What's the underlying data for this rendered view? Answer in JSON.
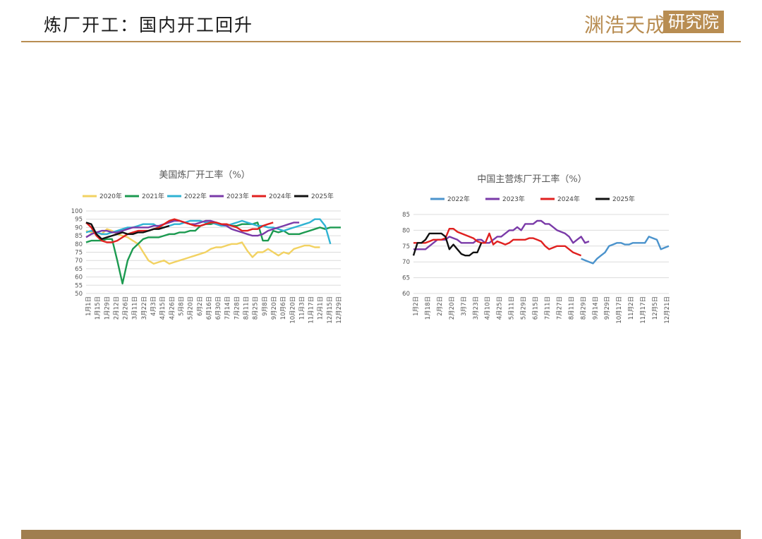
{
  "slide": {
    "title": "炼厂开工：国内开工回升",
    "logo_left": "渊浩天成",
    "logo_right": "研究院"
  },
  "chart_data": [
    {
      "type": "line",
      "title": "美国炼厂开工率（%）",
      "ylim": [
        50,
        100
      ],
      "yticks": [
        50,
        55,
        60,
        65,
        70,
        75,
        80,
        85,
        90,
        95,
        100
      ],
      "grid": true,
      "legend_position": "top",
      "x_tick_labels": [
        "1月1日",
        "1月15日",
        "1月29日",
        "2月12日",
        "2月26日",
        "3月11日",
        "3月22日",
        "4月3日",
        "4月15日",
        "4月26日",
        "5月8日",
        "5月20日",
        "6月2日",
        "6月16日",
        "6月30日",
        "7月14日",
        "7月28日",
        "8月11日",
        "8月25日",
        "9月8日",
        "9月20日",
        "10月6日",
        "10月20日",
        "11月3日",
        "11月17日",
        "12月1日",
        "12月15日",
        "12月29日"
      ],
      "series": [
        {
          "name": "2020年",
          "color": "#f2d262",
          "values": [
            88,
            87,
            87,
            86,
            89,
            88,
            86,
            85,
            84,
            82,
            80,
            75,
            70,
            68,
            69,
            70,
            68,
            69,
            70,
            71,
            72,
            73,
            74,
            75,
            77,
            78,
            78,
            79,
            80,
            80,
            81,
            76,
            72,
            75,
            75,
            77,
            75,
            73,
            75,
            74,
            77,
            78,
            79,
            79,
            78,
            78
          ]
        },
        {
          "name": "2021年",
          "color": "#1c9a50",
          "values": [
            81,
            82,
            82,
            82,
            83,
            83,
            70,
            56,
            70,
            77,
            80,
            83,
            84,
            84,
            84,
            85,
            86,
            86,
            87,
            87,
            88,
            88,
            91,
            92,
            92,
            93,
            92,
            92,
            91,
            91,
            92,
            92,
            92,
            93,
            82,
            82,
            88,
            87,
            88,
            86,
            86,
            86,
            87,
            88,
            89,
            90,
            89,
            90,
            90,
            90
          ]
        },
        {
          "name": "2022年",
          "color": "#2fb3d3",
          "values": [
            87,
            88,
            87,
            86,
            86,
            87,
            88,
            89,
            90,
            90,
            91,
            92,
            92,
            92,
            90,
            90,
            91,
            92,
            92,
            93,
            94,
            94,
            94,
            93,
            93,
            92,
            91,
            91,
            92,
            93,
            94,
            93,
            92,
            91,
            91,
            90,
            90,
            89,
            88,
            89,
            90,
            91,
            92,
            93,
            95,
            95,
            91,
            80
          ]
        },
        {
          "name": "2023年",
          "color": "#7a3aa8",
          "values": [
            84,
            86,
            87,
            88,
            88,
            87,
            87,
            88,
            89,
            90,
            90,
            90,
            90,
            91,
            91,
            92,
            93,
            94,
            94,
            93,
            92,
            92,
            93,
            94,
            94,
            93,
            92,
            91,
            89,
            88,
            87,
            86,
            85,
            85,
            86,
            88,
            89,
            90,
            91,
            92,
            93,
            93
          ]
        },
        {
          "name": "2024年",
          "color": "#e0201f",
          "values": [
            93,
            90,
            85,
            82,
            81,
            81,
            82,
            84,
            86,
            87,
            88,
            88,
            88,
            89,
            90,
            92,
            94,
            95,
            94,
            93,
            92,
            91,
            91,
            92,
            93,
            93,
            92,
            92,
            91,
            90,
            88,
            88,
            89,
            89,
            91,
            92,
            93
          ]
        },
        {
          "name": "2025年",
          "color": "#111111",
          "values": [
            93,
            92,
            86,
            83,
            84,
            85,
            86,
            87,
            86,
            86,
            87,
            87,
            88,
            89,
            89,
            90,
            91
          ]
        }
      ]
    },
    {
      "type": "line",
      "title": "中国主营炼厂开工率（%）",
      "ylim": [
        60,
        85
      ],
      "yticks": [
        60,
        65,
        70,
        75,
        80,
        85
      ],
      "grid": true,
      "legend_position": "top",
      "x_tick_labels": [
        "1月2日",
        "1月18日",
        "2月2日",
        "2月20日",
        "3月7日",
        "3月23日",
        "4月10日",
        "4月25日",
        "5月11日",
        "5月29日",
        "6月15日",
        "7月11日",
        "7月27日",
        "8月11日",
        "8月29日",
        "9月14日",
        "9月29日",
        "10月17日",
        "11月2日",
        "11月17日",
        "12月5日",
        "12月21日"
      ],
      "series": [
        {
          "name": "2022年",
          "color": "#4b93cc",
          "values": [
            null,
            null,
            null,
            null,
            null,
            null,
            null,
            null,
            null,
            null,
            null,
            null,
            null,
            null,
            null,
            null,
            null,
            null,
            null,
            null,
            null,
            null,
            null,
            null,
            null,
            null,
            null,
            null,
            null,
            null,
            null,
            null,
            null,
            null,
            null,
            null,
            null,
            null,
            null,
            null,
            null,
            null,
            71,
            70.5,
            70,
            69.5,
            71,
            72,
            73,
            75,
            75.5,
            76,
            76,
            75.5,
            75.5,
            76,
            76,
            76,
            76,
            78,
            77.5,
            77,
            74,
            74.5,
            75
          ]
        },
        {
          "name": "2023年",
          "color": "#7a3aa8",
          "values": [
            74,
            74,
            74,
            74,
            75,
            76,
            77,
            77,
            77,
            78,
            77.5,
            77,
            76,
            76,
            76,
            76,
            77,
            77,
            76,
            76,
            77,
            78,
            78,
            79,
            80,
            80,
            81,
            80,
            82,
            82,
            82,
            83,
            83,
            82,
            82,
            81,
            80,
            79.5,
            79,
            78,
            76,
            77,
            78,
            76,
            76.5
          ]
        },
        {
          "name": "2024年",
          "color": "#e0201f",
          "values": [
            76,
            76,
            76,
            76,
            76.5,
            77,
            77,
            77,
            77.5,
            80.5,
            80.5,
            79.5,
            79,
            78.5,
            78,
            77.5,
            76.5,
            76,
            76,
            79,
            75.5,
            76.5,
            76,
            75.5,
            76,
            77,
            77,
            77,
            77,
            77.5,
            77.5,
            77,
            76.5,
            75,
            74,
            74.5,
            75,
            75,
            75,
            74,
            73,
            72.5,
            72
          ]
        },
        {
          "name": "2025年",
          "color": "#111111",
          "values": [
            72,
            76,
            76,
            77,
            79,
            79,
            79,
            79,
            78,
            74,
            75.5,
            74,
            72.5,
            72,
            72,
            73,
            73,
            76
          ]
        }
      ]
    }
  ]
}
